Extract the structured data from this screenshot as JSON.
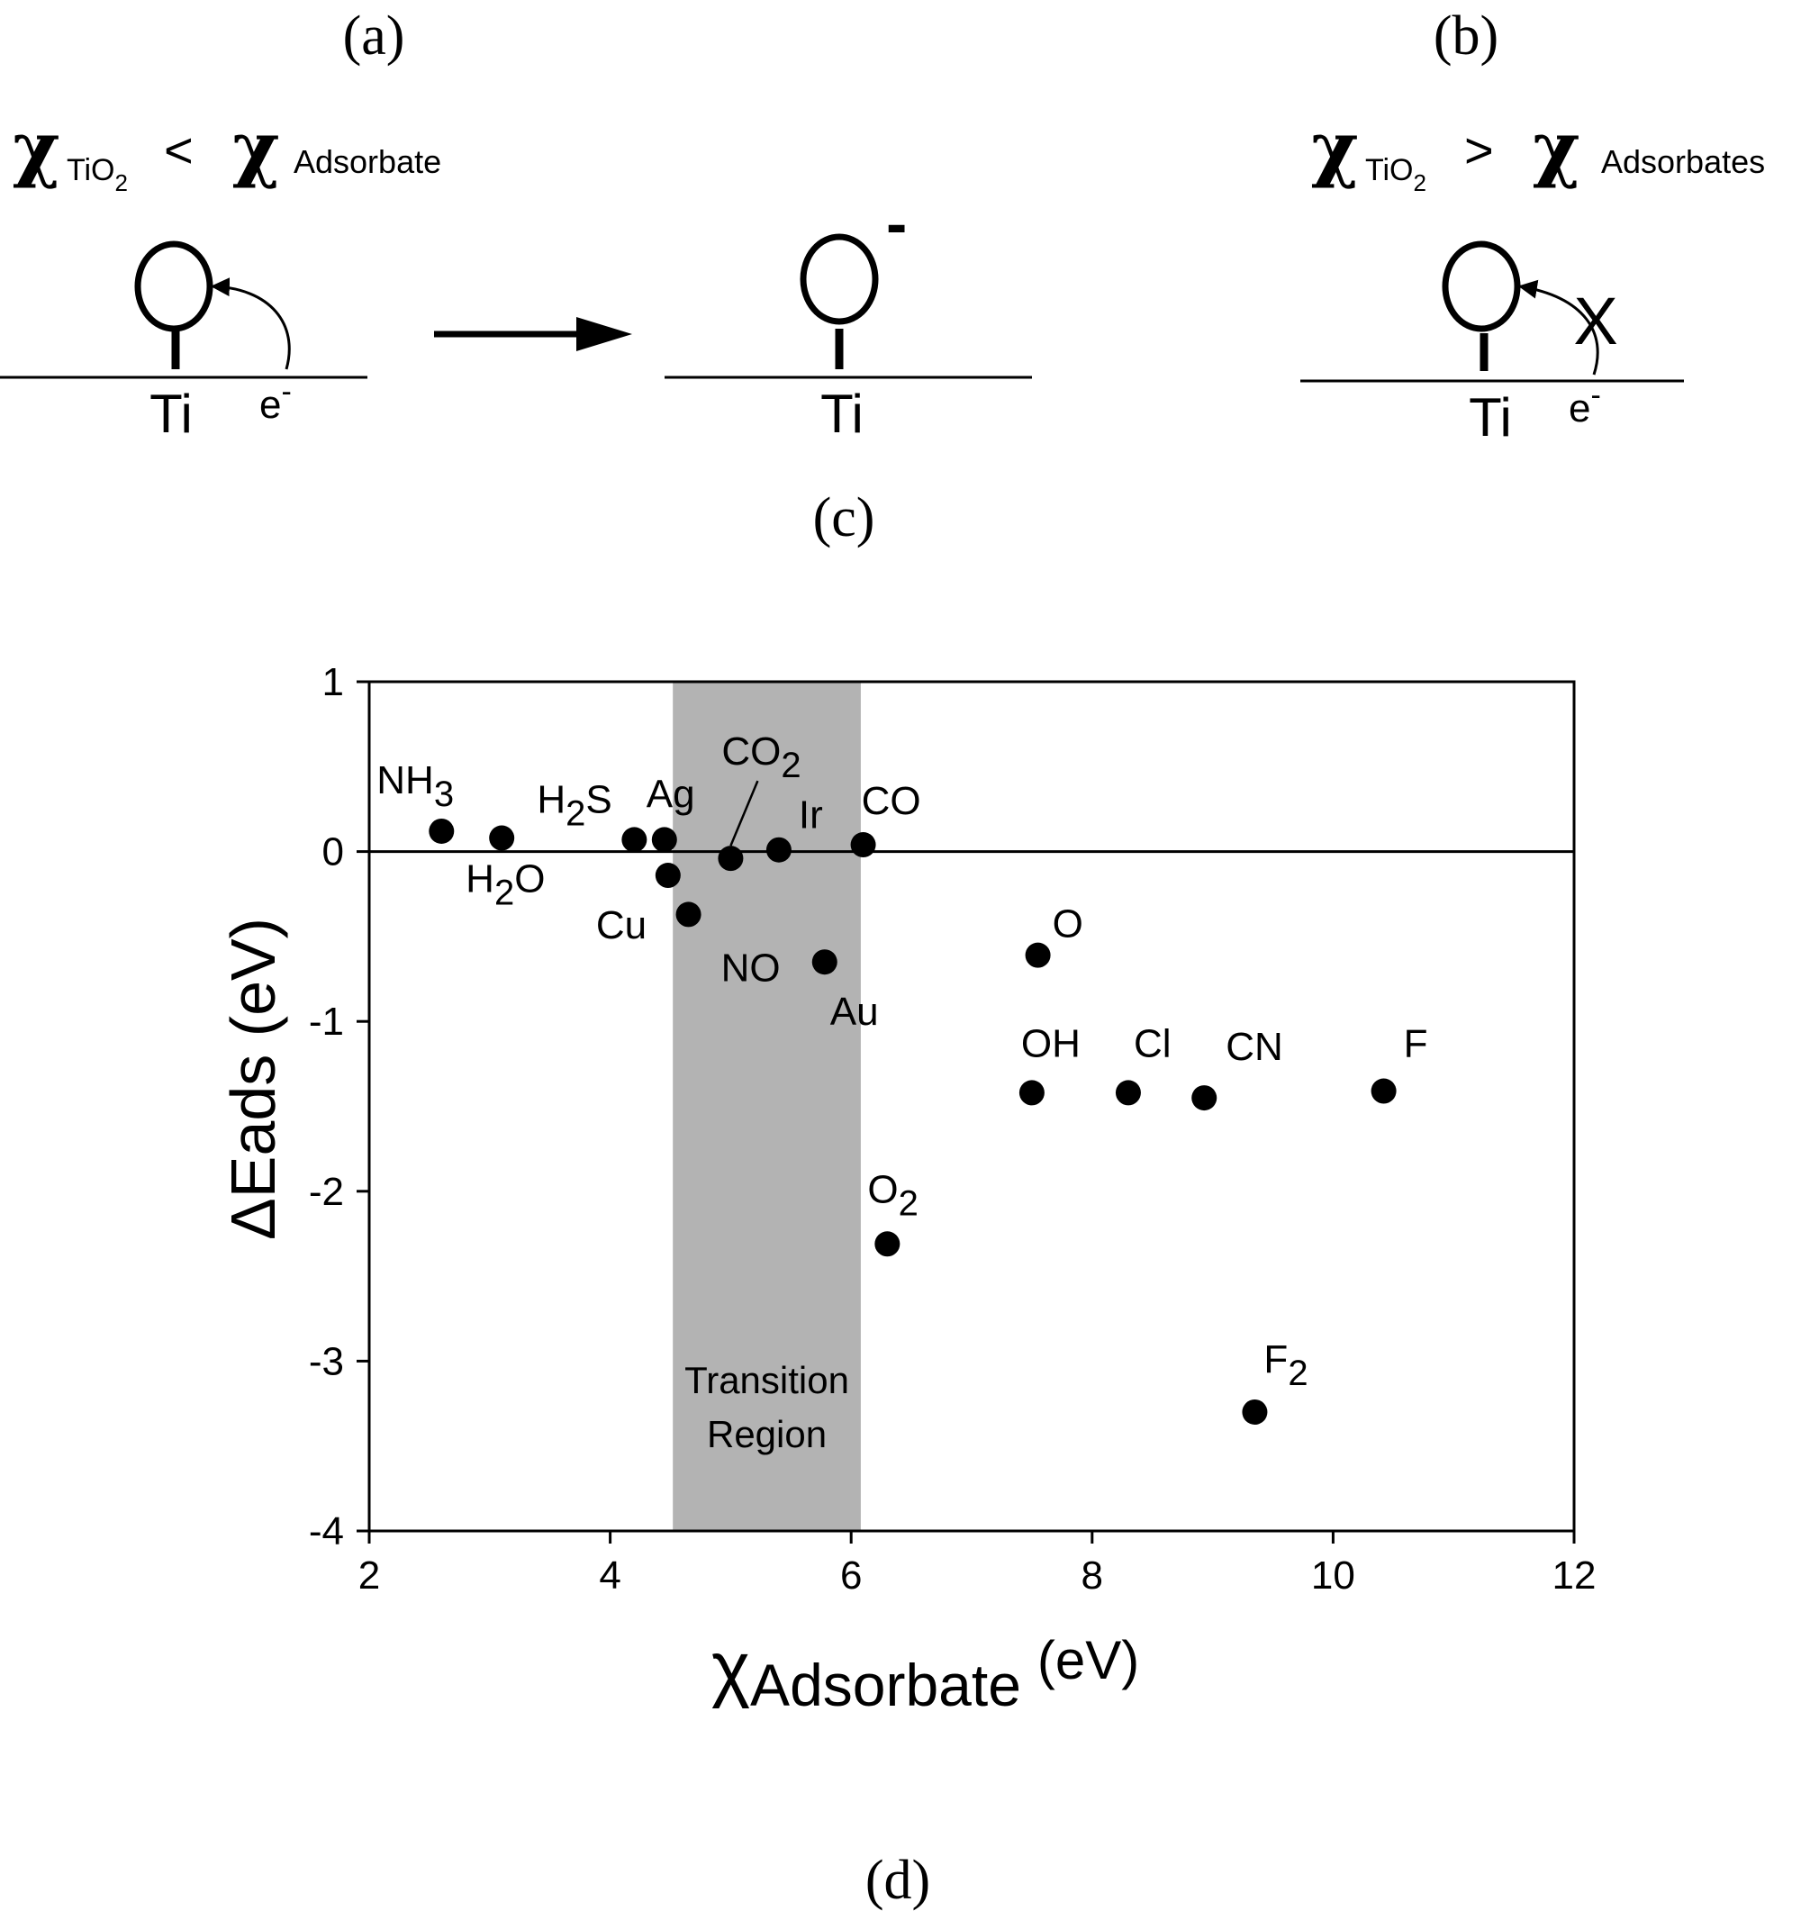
{
  "panels": {
    "a": "(a)",
    "b": "(b)",
    "c": "(c)",
    "d": "(d)"
  },
  "diagram": {
    "left_condition": {
      "symbol": "χ",
      "sub": "TiO",
      "sub2": "2",
      "op": "<",
      "symbol2": "χ",
      "sub_right": "Adsorbate"
    },
    "right_condition": {
      "symbol": "χ",
      "sub": "TiO",
      "sub2": "2",
      "op": ">",
      "symbol2": "χ",
      "sub_right": "Adsorbates"
    },
    "ti": "Ti",
    "electron": "e",
    "charge": "-",
    "blocked": "X"
  },
  "chart_data": {
    "type": "scatter",
    "xlabel": {
      "symbol": "χ",
      "sub": "Adsorbate",
      "unit": "(eV)"
    },
    "ylabel": "ΔEads (eV)",
    "xlim": [
      2,
      12
    ],
    "ylim": [
      -4,
      1
    ],
    "xticks": [
      "2",
      "4",
      "6",
      "8",
      "10",
      "12"
    ],
    "yticks": [
      "1",
      "0",
      "-1",
      "-2",
      "-3",
      "-4"
    ],
    "reference_line_y": 0,
    "shaded_region": {
      "x": [
        4.52,
        6.08
      ],
      "label_line1": "Transition",
      "label_line2": "Region",
      "color": "#b3b3b3"
    },
    "points": [
      {
        "name": "NH",
        "sub": "3",
        "x": 2.6,
        "y": 0.12
      },
      {
        "name": "H",
        "sub": "2",
        "suffix": "O",
        "x": 3.1,
        "y": 0.08
      },
      {
        "name": "H",
        "sub": "2",
        "suffix": "S",
        "x": 4.2,
        "y": 0.07
      },
      {
        "name": "Ag",
        "x": 4.45,
        "y": 0.07
      },
      {
        "name": "Cu",
        "x": 4.48,
        "y": -0.14
      },
      {
        "name": "NO",
        "x": 4.65,
        "y": -0.37
      },
      {
        "name": "CO",
        "sub": "2",
        "x": 5.0,
        "y": -0.04
      },
      {
        "name": "Ir",
        "x": 5.4,
        "y": 0.01
      },
      {
        "name": "Au",
        "x": 5.78,
        "y": -0.65
      },
      {
        "name": "CO",
        "x": 6.1,
        "y": 0.04
      },
      {
        "name": "O",
        "sub": "2",
        "x": 6.3,
        "y": -2.31
      },
      {
        "name": "O",
        "x": 7.55,
        "y": -0.61
      },
      {
        "name": "OH",
        "x": 7.5,
        "y": -1.42
      },
      {
        "name": "Cl",
        "x": 8.3,
        "y": -1.42
      },
      {
        "name": "CN",
        "x": 8.93,
        "y": -1.45
      },
      {
        "name": "F",
        "x": 10.42,
        "y": -1.41
      },
      {
        "name": "F",
        "sub": "2",
        "x": 9.35,
        "y": -3.3
      }
    ]
  }
}
